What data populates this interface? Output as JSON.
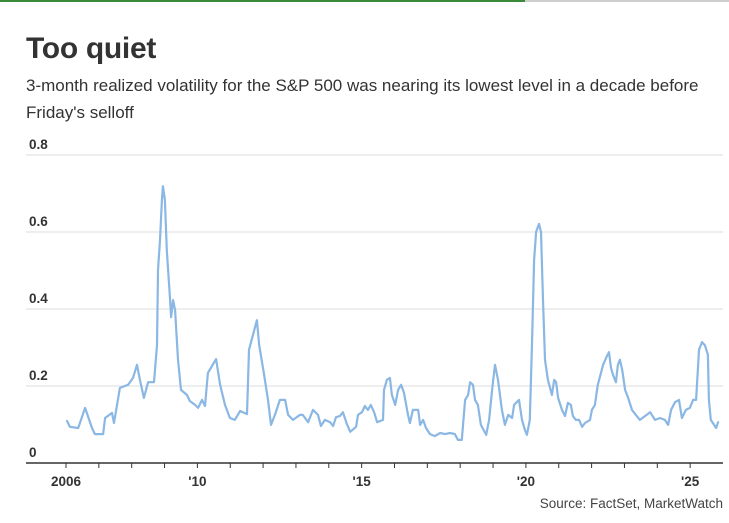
{
  "progress_bar": {
    "percent": 72,
    "color": "#3b8a3a"
  },
  "header": {
    "title": "Too quiet",
    "subtitle": "3-month realized volatility for the S&P 500 was nearing its lowest level in a decade before Friday's selloff"
  },
  "source": "Source: FactSet, MarketWatch",
  "chart_data": {
    "type": "line",
    "title": "Too quiet",
    "subtitle": "3-month realized volatility for the S&P 500 was nearing its lowest level in a decade before Friday's selloff",
    "xlabel": "",
    "ylabel": "",
    "xlim": [
      2006,
      2026
    ],
    "ylim": [
      0,
      0.8
    ],
    "grid": true,
    "legend": "none",
    "line_color": "#8ab7e3",
    "y_ticks": [
      {
        "value": 0,
        "label": "0"
      },
      {
        "value": 0.2,
        "label": "0.2"
      },
      {
        "value": 0.4,
        "label": "0.4"
      },
      {
        "value": 0.6,
        "label": "0.6"
      },
      {
        "value": 0.8,
        "label": "0.8"
      }
    ],
    "x_ticks": [
      {
        "value": 2006,
        "label": "2006"
      },
      {
        "value": 2007,
        "label": ""
      },
      {
        "value": 2008,
        "label": ""
      },
      {
        "value": 2009,
        "label": ""
      },
      {
        "value": 2010,
        "label": "'10"
      },
      {
        "value": 2011,
        "label": ""
      },
      {
        "value": 2012,
        "label": ""
      },
      {
        "value": 2013,
        "label": ""
      },
      {
        "value": 2014,
        "label": ""
      },
      {
        "value": 2015,
        "label": "'15"
      },
      {
        "value": 2016,
        "label": ""
      },
      {
        "value": 2017,
        "label": ""
      },
      {
        "value": 2018,
        "label": ""
      },
      {
        "value": 2019,
        "label": ""
      },
      {
        "value": 2020,
        "label": "'20"
      },
      {
        "value": 2021,
        "label": ""
      },
      {
        "value": 2022,
        "label": ""
      },
      {
        "value": 2023,
        "label": ""
      },
      {
        "value": 2024,
        "label": ""
      },
      {
        "value": 2025,
        "label": "'25"
      }
    ],
    "series": [
      {
        "name": "S&P 500 3-month realized volatility",
        "x": [
          2006.03,
          2006.12,
          2006.37,
          2006.58,
          2006.79,
          2006.88,
          2007.13,
          2007.19,
          2007.4,
          2007.46,
          2007.64,
          2007.89,
          2008.04,
          2008.16,
          2008.25,
          2008.37,
          2008.5,
          2008.68,
          2008.77,
          2008.8,
          2008.86,
          2008.92,
          2008.95,
          2009.01,
          2009.07,
          2009.17,
          2009.2,
          2009.26,
          2009.32,
          2009.41,
          2009.5,
          2009.68,
          2009.77,
          2009.93,
          2010.02,
          2010.14,
          2010.23,
          2010.32,
          2010.57,
          2010.69,
          2010.84,
          2010.99,
          2011.14,
          2011.3,
          2011.51,
          2011.57,
          2011.69,
          2011.81,
          2011.88,
          2012.03,
          2012.15,
          2012.24,
          2012.36,
          2012.51,
          2012.67,
          2012.76,
          2012.91,
          2013.12,
          2013.21,
          2013.37,
          2013.52,
          2013.67,
          2013.76,
          2013.88,
          2014.04,
          2014.13,
          2014.22,
          2014.34,
          2014.43,
          2014.55,
          2014.65,
          2014.83,
          2014.89,
          2015.01,
          2015.1,
          2015.19,
          2015.28,
          2015.38,
          2015.47,
          2015.65,
          2015.68,
          2015.77,
          2015.86,
          2015.92,
          2016.02,
          2016.11,
          2016.2,
          2016.29,
          2016.41,
          2016.47,
          2016.56,
          2016.72,
          2016.78,
          2016.87,
          2016.96,
          2017.08,
          2017.23,
          2017.39,
          2017.54,
          2017.69,
          2017.84,
          2017.93,
          2018.05,
          2018.15,
          2018.24,
          2018.3,
          2018.39,
          2018.45,
          2018.54,
          2018.63,
          2018.79,
          2018.88,
          2018.97,
          2019.06,
          2019.15,
          2019.27,
          2019.36,
          2019.46,
          2019.58,
          2019.64,
          2019.79,
          2019.88,
          2019.97,
          2020.03,
          2020.12,
          2020.19,
          2020.25,
          2020.31,
          2020.4,
          2020.46,
          2020.52,
          2020.58,
          2020.67,
          2020.79,
          2020.86,
          2020.92,
          2020.98,
          2021.1,
          2021.19,
          2021.28,
          2021.37,
          2021.43,
          2021.52,
          2021.62,
          2021.71,
          2021.8,
          2021.95,
          2022.01,
          2022.1,
          2022.19,
          2022.35,
          2022.44,
          2022.53,
          2022.59,
          2022.65,
          2022.74,
          2022.8,
          2022.86,
          2022.93,
          2023.02,
          2023.11,
          2023.23,
          2023.35,
          2023.47,
          2023.63,
          2023.78,
          2023.93,
          2024.08,
          2024.23,
          2024.33,
          2024.42,
          2024.54,
          2024.66,
          2024.75,
          2024.87,
          2024.99,
          2025.09,
          2025.18,
          2025.27,
          2025.36,
          2025.45,
          2025.54,
          2025.57,
          2025.63,
          2025.73,
          2025.79,
          2025.85
        ],
        "y": [
          0.109,
          0.094,
          0.091,
          0.143,
          0.091,
          0.075,
          0.075,
          0.117,
          0.13,
          0.104,
          0.195,
          0.203,
          0.221,
          0.255,
          0.216,
          0.169,
          0.21,
          0.21,
          0.306,
          0.501,
          0.579,
          0.683,
          0.719,
          0.683,
          0.553,
          0.423,
          0.379,
          0.423,
          0.397,
          0.268,
          0.19,
          0.177,
          0.161,
          0.151,
          0.143,
          0.164,
          0.148,
          0.234,
          0.27,
          0.203,
          0.151,
          0.117,
          0.112,
          0.135,
          0.127,
          0.294,
          0.332,
          0.371,
          0.306,
          0.229,
          0.164,
          0.099,
          0.125,
          0.164,
          0.164,
          0.125,
          0.112,
          0.125,
          0.125,
          0.106,
          0.138,
          0.125,
          0.096,
          0.112,
          0.106,
          0.096,
          0.119,
          0.122,
          0.132,
          0.101,
          0.081,
          0.094,
          0.125,
          0.132,
          0.148,
          0.138,
          0.151,
          0.132,
          0.106,
          0.112,
          0.19,
          0.216,
          0.221,
          0.177,
          0.151,
          0.19,
          0.203,
          0.182,
          0.125,
          0.104,
          0.138,
          0.138,
          0.099,
          0.112,
          0.091,
          0.075,
          0.07,
          0.078,
          0.075,
          0.078,
          0.075,
          0.06,
          0.06,
          0.164,
          0.177,
          0.21,
          0.203,
          0.164,
          0.151,
          0.099,
          0.073,
          0.112,
          0.19,
          0.255,
          0.216,
          0.138,
          0.099,
          0.125,
          0.117,
          0.151,
          0.164,
          0.112,
          0.086,
          0.073,
          0.112,
          0.319,
          0.527,
          0.6,
          0.621,
          0.6,
          0.423,
          0.268,
          0.216,
          0.177,
          0.216,
          0.21,
          0.169,
          0.138,
          0.122,
          0.156,
          0.151,
          0.122,
          0.112,
          0.112,
          0.094,
          0.104,
          0.112,
          0.138,
          0.151,
          0.203,
          0.255,
          0.273,
          0.288,
          0.247,
          0.229,
          0.21,
          0.255,
          0.268,
          0.242,
          0.19,
          0.169,
          0.138,
          0.125,
          0.112,
          0.122,
          0.132,
          0.112,
          0.117,
          0.112,
          0.099,
          0.138,
          0.158,
          0.164,
          0.117,
          0.138,
          0.143,
          0.164,
          0.164,
          0.294,
          0.314,
          0.306,
          0.281,
          0.164,
          0.112,
          0.099,
          0.091,
          0.106
        ]
      }
    ]
  }
}
